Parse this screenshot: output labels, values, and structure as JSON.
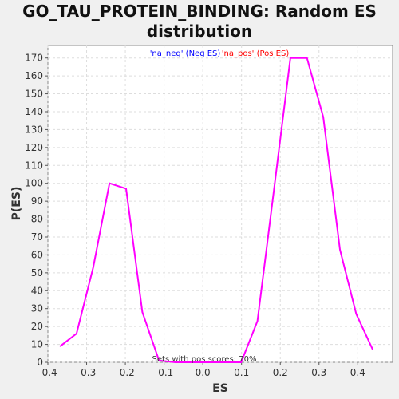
{
  "chart_data": {
    "type": "line",
    "title_lines": [
      "GO_TAU_PROTEIN_BINDING: Random ES",
      "distribution"
    ],
    "xlabel": "ES",
    "ylabel": "P(ES)",
    "xlim": [
      -0.4,
      0.49
    ],
    "ylim": [
      0,
      177
    ],
    "xticks": [
      -0.4,
      -0.3,
      -0.2,
      -0.1,
      0.0,
      0.1,
      0.2,
      0.3,
      0.4
    ],
    "xtick_labels": [
      "-0.4",
      "-0.3",
      "-0.2",
      "-0.1",
      "0.0",
      "0.1",
      "0.2",
      "0.3",
      "0.4"
    ],
    "yticks": [
      0,
      10,
      20,
      30,
      40,
      50,
      60,
      70,
      80,
      90,
      100,
      110,
      120,
      130,
      140,
      150,
      160,
      170
    ],
    "grid": true,
    "legend_position": "top-center",
    "legend": [
      {
        "label": "'na_neg' (Neg ES)",
        "color": "#0000ff"
      },
      {
        "label": "'na_pos' (Pos ES)",
        "color": "#ff0000"
      }
    ],
    "annotation": "Sets with pos scores: 70%",
    "series": [
      {
        "color": "#ff00ff",
        "x": [
          -0.368,
          -0.326,
          -0.283,
          -0.241,
          -0.198,
          -0.156,
          -0.113,
          -0.071,
          -0.029,
          0.014,
          0.056,
          0.099,
          0.141,
          0.184,
          0.226,
          0.269,
          0.311,
          0.354,
          0.396,
          0.439
        ],
        "y": [
          9,
          16,
          53,
          100,
          97,
          28,
          1,
          0,
          0,
          0,
          0,
          0,
          23,
          97,
          170,
          170,
          137,
          63,
          27,
          7
        ]
      }
    ]
  }
}
